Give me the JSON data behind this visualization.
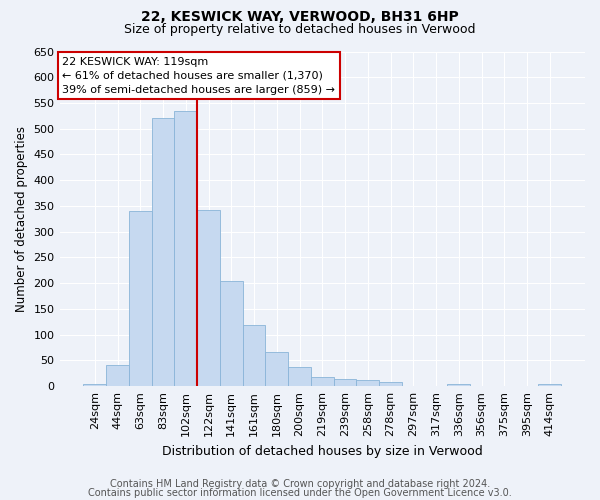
{
  "title1": "22, KESWICK WAY, VERWOOD, BH31 6HP",
  "title2": "Size of property relative to detached houses in Verwood",
  "xlabel": "Distribution of detached houses by size in Verwood",
  "ylabel": "Number of detached properties",
  "footer1": "Contains HM Land Registry data © Crown copyright and database right 2024.",
  "footer2": "Contains public sector information licensed under the Open Government Licence v3.0.",
  "bar_labels": [
    "24sqm",
    "44sqm",
    "63sqm",
    "83sqm",
    "102sqm",
    "122sqm",
    "141sqm",
    "161sqm",
    "180sqm",
    "200sqm",
    "219sqm",
    "239sqm",
    "258sqm",
    "278sqm",
    "297sqm",
    "317sqm",
    "336sqm",
    "356sqm",
    "375sqm",
    "395sqm",
    "414sqm"
  ],
  "bar_values": [
    5,
    42,
    340,
    520,
    535,
    343,
    204,
    119,
    67,
    37,
    18,
    13,
    12,
    8,
    0,
    0,
    5,
    0,
    0,
    0,
    5
  ],
  "bar_color": "#c6d9f0",
  "bar_edgecolor": "#8ab4d8",
  "property_line_x": 4.5,
  "annotation_text": "22 KESWICK WAY: 119sqm\n← 61% of detached houses are smaller (1,370)\n39% of semi-detached houses are larger (859) →",
  "annotation_box_facecolor": "#ffffff",
  "annotation_box_edgecolor": "#cc0000",
  "vline_color": "#cc0000",
  "ylim": [
    0,
    650
  ],
  "yticks": [
    0,
    50,
    100,
    150,
    200,
    250,
    300,
    350,
    400,
    450,
    500,
    550,
    600,
    650
  ],
  "background_color": "#eef2f9",
  "grid_color": "#ffffff",
  "title1_fontsize": 10,
  "title2_fontsize": 9,
  "xlabel_fontsize": 9,
  "ylabel_fontsize": 8.5,
  "tick_fontsize": 8,
  "footer_fontsize": 7,
  "annot_fontsize": 8
}
